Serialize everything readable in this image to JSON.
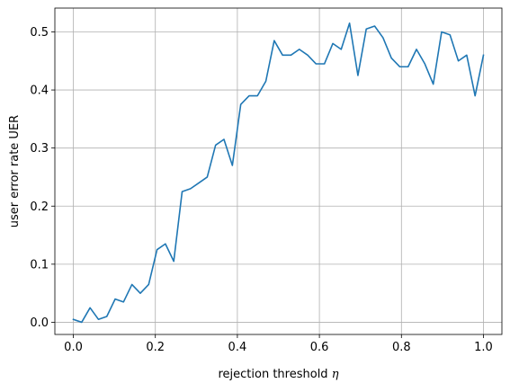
{
  "chart_data": {
    "type": "line",
    "title": "",
    "xlabel": "rejection threshold",
    "xlabel_symbol": "η",
    "ylabel": "user error rate UER",
    "xlim": [
      -0.045,
      1.045
    ],
    "ylim": [
      -0.021,
      0.541
    ],
    "grid": true,
    "line_color": "#1f77b4",
    "x_ticks": [
      0.0,
      0.2,
      0.4,
      0.6,
      0.8,
      1.0
    ],
    "x_tick_labels": [
      "0.0",
      "0.2",
      "0.4",
      "0.6",
      "0.8",
      "1.0"
    ],
    "y_ticks": [
      0.0,
      0.1,
      0.2,
      0.3,
      0.4,
      0.5
    ],
    "y_tick_labels": [
      "0.0",
      "0.1",
      "0.2",
      "0.3",
      "0.4",
      "0.5"
    ],
    "series": [
      {
        "x": [
          0.0,
          0.0204,
          0.0408,
          0.0612,
          0.0816,
          0.102,
          0.1224,
          0.1429,
          0.1633,
          0.1837,
          0.2041,
          0.2245,
          0.2449,
          0.2653,
          0.2857,
          0.3061,
          0.3265,
          0.3469,
          0.3673,
          0.3878,
          0.4082,
          0.4286,
          0.449,
          0.4694,
          0.4898,
          0.5102,
          0.5306,
          0.551,
          0.5714,
          0.5918,
          0.6122,
          0.6327,
          0.6531,
          0.6735,
          0.6939,
          0.7143,
          0.7347,
          0.7551,
          0.7755,
          0.7959,
          0.8163,
          0.8367,
          0.8571,
          0.8776,
          0.898,
          0.9184,
          0.9388,
          0.9592,
          0.9796,
          1.0
        ],
        "values": [
          0.005,
          0.0,
          0.025,
          0.005,
          0.01,
          0.04,
          0.035,
          0.065,
          0.05,
          0.065,
          0.125,
          0.135,
          0.105,
          0.225,
          0.23,
          0.24,
          0.25,
          0.305,
          0.315,
          0.27,
          0.375,
          0.39,
          0.39,
          0.415,
          0.485,
          0.46,
          0.46,
          0.47,
          0.46,
          0.445,
          0.445,
          0.48,
          0.47,
          0.515,
          0.425,
          0.505,
          0.51,
          0.49,
          0.455,
          0.44,
          0.44,
          0.47,
          0.445,
          0.41,
          0.5,
          0.495,
          0.45,
          0.46,
          0.39,
          0.46
        ]
      }
    ]
  }
}
